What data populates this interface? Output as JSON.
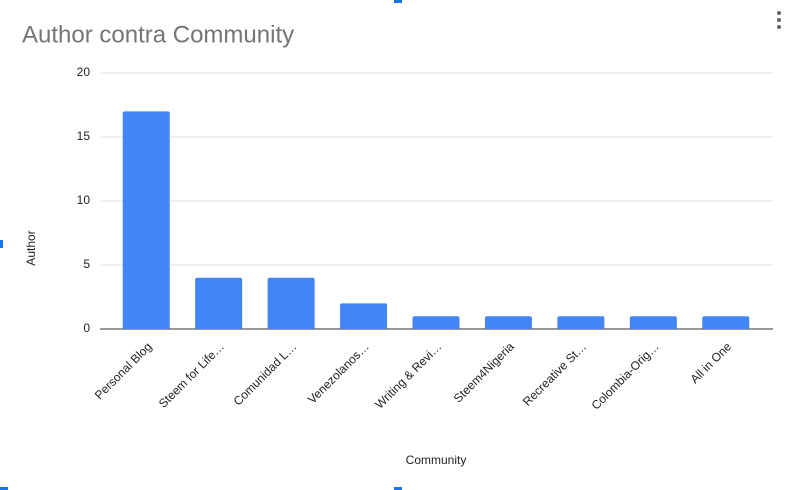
{
  "chart_data": {
    "type": "bar",
    "title": "Author contra Community",
    "x_label": "Community",
    "y_label": "Author",
    "categories": [
      "Personal Blog",
      "Steem for Life…",
      "Comunidad L…",
      "Venezolanos…",
      "Writing & Revi…",
      "Steem4Nigeria",
      "Recreative St…",
      "Colombia-Orig…",
      "All in One"
    ],
    "values": [
      17,
      4,
      4,
      2,
      1,
      1,
      1,
      1,
      1
    ],
    "color": "#4285f4",
    "ylim": [
      0,
      20
    ],
    "yticks": [
      0,
      5,
      10,
      15,
      20
    ],
    "grid": true
  }
}
